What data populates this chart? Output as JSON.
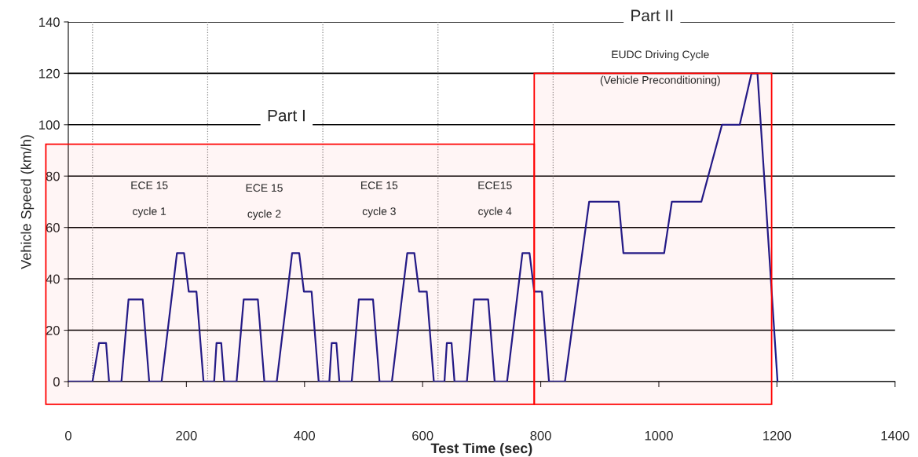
{
  "chart_data": {
    "type": "line",
    "xlabel": "Test Time (sec)",
    "ylabel": "Vehicle Speed (km/h)",
    "xlim": [
      0,
      1400
    ],
    "xticks": [
      0,
      200,
      400,
      600,
      800,
      1000,
      1200,
      1400
    ],
    "ylim": [
      0,
      140
    ],
    "yticks": [
      0,
      20,
      40,
      60,
      80,
      100,
      120,
      140
    ],
    "grid": "y",
    "legend": false,
    "marker": "none",
    "line_style": "solid",
    "series": [
      {
        "color": "#1c1c8c",
        "x": [
          0,
          41,
          52,
          56,
          64,
          69,
          90,
          102,
          126,
          137,
          158,
          184,
          196,
          204,
          217,
          229,
          236,
          247,
          251,
          259,
          264,
          285,
          297,
          321,
          332,
          353,
          379,
          391,
          399,
          412,
          424,
          431,
          442,
          446,
          454,
          459,
          480,
          492,
          516,
          527,
          548,
          574,
          586,
          594,
          607,
          619,
          626,
          637,
          641,
          649,
          654,
          675,
          687,
          711,
          722,
          743,
          769,
          781,
          789,
          802,
          814,
          821,
          841,
          882,
          932,
          940,
          1009,
          1022,
          1072,
          1107,
          1137,
          1157,
          1167,
          1201
        ],
        "values": [
          0,
          0,
          15,
          15,
          15,
          0,
          0,
          32,
          32,
          0,
          0,
          50,
          50,
          35,
          35,
          0,
          0,
          0,
          15,
          15,
          0,
          0,
          32,
          32,
          0,
          0,
          50,
          50,
          35,
          35,
          0,
          0,
          0,
          15,
          15,
          0,
          0,
          32,
          32,
          0,
          0,
          50,
          50,
          35,
          35,
          0,
          0,
          0,
          15,
          15,
          0,
          0,
          32,
          32,
          0,
          0,
          50,
          50,
          35,
          35,
          0,
          0,
          0,
          70,
          70,
          50,
          50,
          70,
          70,
          100,
          100,
          120,
          120,
          0
        ]
      }
    ],
    "ref_lines": [
      {
        "axis": "x",
        "value": 41,
        "color": "#888888",
        "line_style": "dotted"
      },
      {
        "axis": "x",
        "value": 236,
        "color": "#888888",
        "line_style": "dotted"
      },
      {
        "axis": "x",
        "value": 431,
        "color": "#888888",
        "line_style": "dotted"
      },
      {
        "axis": "x",
        "value": 626,
        "color": "#888888",
        "line_style": "dotted"
      },
      {
        "axis": "x",
        "value": 821,
        "color": "#888888",
        "line_style": "dotted"
      },
      {
        "axis": "x",
        "value": 1227,
        "color": "#888888",
        "line_style": "dotted"
      }
    ],
    "bands": [
      {
        "axis": "x",
        "from": -38,
        "to": 789,
        "color": "#ff0000"
      },
      {
        "axis": "x",
        "from": 789,
        "to": 1191,
        "color": "#ff0000"
      }
    ],
    "annotations": [
      "Part I",
      "Part II",
      "ECE 15",
      "cycle 1",
      "ECE 15",
      "cycle 2",
      "ECE 15",
      "cycle 3",
      "ECE15",
      "cycle 4",
      "EUDC Driving Cycle",
      "(Vehicle Preconditioning)"
    ]
  }
}
